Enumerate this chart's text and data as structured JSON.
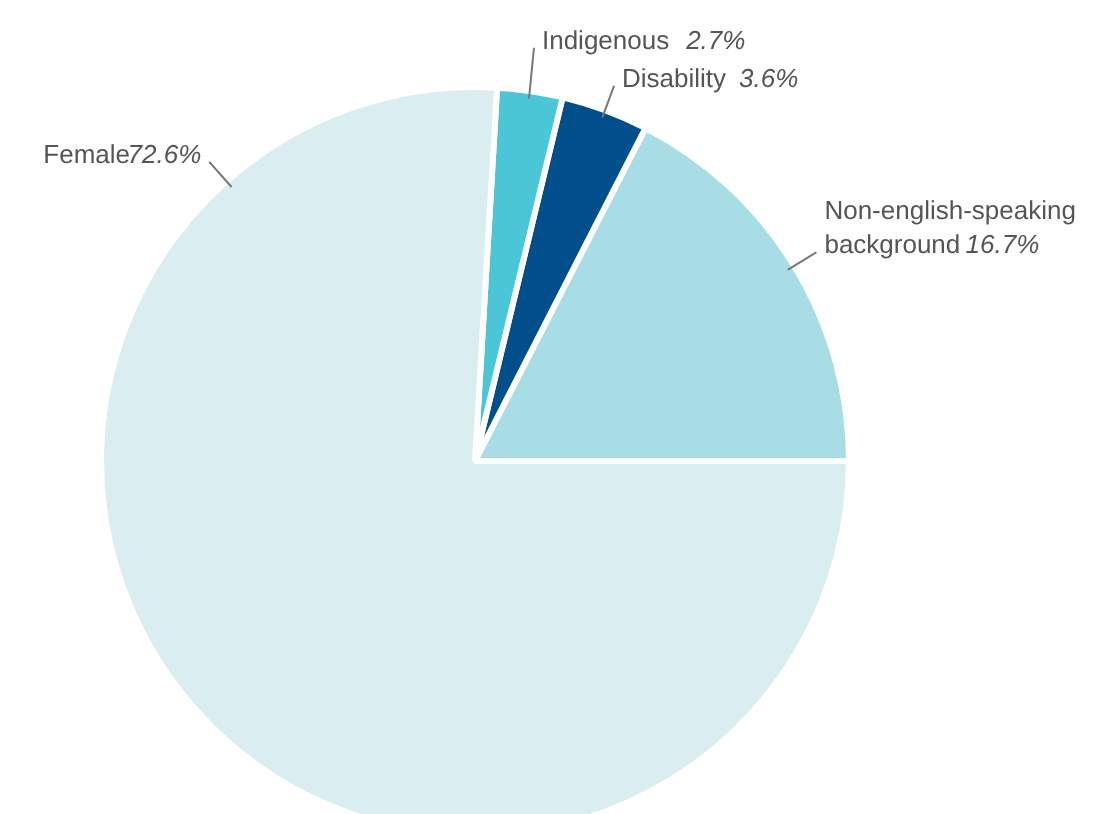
{
  "chart_data": {
    "type": "pie",
    "categories": [
      "Non-english-speaking background",
      "Disability",
      "Indigenous",
      "Female"
    ],
    "values": [
      16.7,
      3.6,
      2.7,
      72.6
    ],
    "colors": [
      "#a8dde6",
      "#004f8a",
      "#4ac6d6",
      "#daeef2"
    ],
    "value_labels": [
      "16.7%",
      "3.6%",
      "2.7%",
      "72.6%"
    ]
  }
}
